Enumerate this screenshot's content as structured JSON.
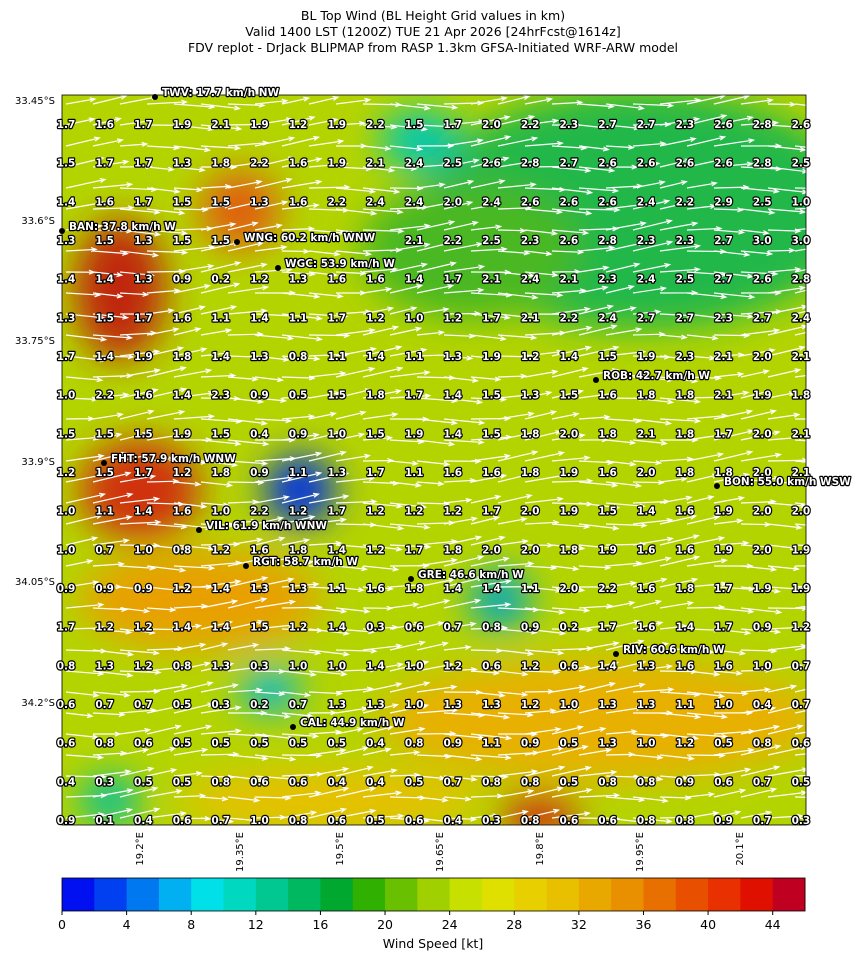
{
  "header": {
    "lines": [
      "BL Top Wind (BL Height Grid values in km)",
      "Valid 1400 LST (1200Z) TUE 21 Apr 2026 [24hrFcst@1614z]",
      "FDV replot - DrJack BLIPMAP from RASP 1.3km GFSA-Initiated WRF-ARW model"
    ]
  },
  "map": {
    "lat_labels": [
      "33.45°S",
      "33.6°S",
      "33.75°S",
      "33.9°S",
      "34.05°S",
      "34.2°S"
    ],
    "lon_labels": [
      "19.2°E",
      "19.35°E",
      "19.5°E",
      "19.65°E",
      "19.8°E",
      "19.95°E",
      "20.1°E"
    ],
    "grid": [
      [
        "1.7",
        "1.6",
        "1.7",
        "1.9",
        "2.1",
        "1.9",
        "1.2",
        "1.9",
        "2.2",
        "1.5",
        "1.7",
        "2.0",
        "2.2",
        "2.3",
        "2.7",
        "2.7",
        "2.3",
        "2.6",
        "2.8",
        "2.6"
      ],
      [
        "1.5",
        "1.7",
        "1.7",
        "1.3",
        "1.8",
        "2.2",
        "1.6",
        "1.9",
        "2.1",
        "2.4",
        "2.5",
        "2.6",
        "2.8",
        "2.7",
        "2.6",
        "2.6",
        "2.6",
        "2.6",
        "2.8",
        "2.5"
      ],
      [
        "1.4",
        "1.6",
        "1.7",
        "1.5",
        "1.5",
        "1.3",
        "1.6",
        "2.2",
        "2.4",
        "2.4",
        "2.0",
        "2.4",
        "2.6",
        "2.6",
        "2.6",
        "2.4",
        "2.2",
        "2.9",
        "2.5",
        "1.0"
      ],
      [
        "1.3",
        "1.5",
        "1.3",
        "1.5",
        "1.5",
        null,
        null,
        null,
        null,
        "2.1",
        "2.2",
        "2.5",
        "2.3",
        "2.6",
        "2.8",
        "2.3",
        "2.3",
        "2.7",
        "3.0",
        "3.0"
      ],
      [
        "1.4",
        "1.4",
        "1.3",
        "0.9",
        "0.2",
        "1.2",
        "1.3",
        "1.6",
        "1.6",
        "1.4",
        "1.7",
        "2.1",
        "2.4",
        "2.1",
        "2.3",
        "2.4",
        "2.5",
        "2.7",
        "2.6",
        "2.8"
      ],
      [
        "1.3",
        "1.5",
        "1.7",
        "1.6",
        "1.1",
        "1.4",
        "1.1",
        "1.7",
        "1.2",
        "1.0",
        "1.2",
        "1.7",
        "2.1",
        "2.2",
        "2.4",
        "2.7",
        "2.7",
        "2.3",
        "2.7",
        "2.4"
      ],
      [
        "1.7",
        "1.4",
        "1.9",
        "1.8",
        "1.4",
        "1.3",
        "0.8",
        "1.1",
        "1.4",
        "1.1",
        "1.3",
        "1.9",
        "1.2",
        "1.4",
        "1.5",
        "1.9",
        "2.3",
        "2.1",
        "2.0",
        "2.1"
      ],
      [
        "1.0",
        "2.2",
        "1.6",
        "1.4",
        "2.3",
        "0.9",
        "0.5",
        "1.5",
        "1.8",
        "1.7",
        "1.4",
        "1.5",
        "1.3",
        "1.5",
        "1.6",
        "1.8",
        "1.8",
        "2.1",
        "1.9",
        "1.8"
      ],
      [
        "1.5",
        "1.5",
        "1.5",
        "1.9",
        "1.5",
        "0.4",
        "0.9",
        "1.0",
        "1.5",
        "1.9",
        "1.4",
        "1.5",
        "1.8",
        "2.0",
        "1.8",
        "2.1",
        "1.8",
        "1.7",
        "2.0",
        "2.1"
      ],
      [
        "1.2",
        "1.5",
        "1.7",
        "1.2",
        "1.8",
        "0.9",
        "1.1",
        "1.3",
        "1.7",
        "1.1",
        "1.6",
        "1.6",
        "1.8",
        "1.9",
        "1.6",
        "2.0",
        "1.8",
        "1.8",
        "2.0",
        "2.1"
      ],
      [
        "1.0",
        "1.1",
        "1.4",
        "1.6",
        "1.0",
        "2.2",
        "1.2",
        "1.7",
        "1.2",
        "1.2",
        "1.2",
        "1.7",
        "2.0",
        "1.9",
        "1.5",
        "1.4",
        "1.6",
        "1.9",
        "2.0",
        "2.0"
      ],
      [
        "1.0",
        "0.7",
        "1.0",
        "0.8",
        "1.2",
        "1.6",
        "1.8",
        "1.4",
        "1.2",
        "1.7",
        "1.8",
        "2.0",
        "2.0",
        "1.8",
        "1.9",
        "1.6",
        "1.6",
        "1.9",
        "2.0",
        "1.9"
      ],
      [
        "0.9",
        "0.9",
        "0.9",
        "1.2",
        "1.4",
        "1.3",
        "1.3",
        "1.1",
        "1.6",
        "1.8",
        "1.4",
        "1.4",
        "1.1",
        "2.0",
        "2.2",
        "1.6",
        "1.8",
        "1.7",
        "1.9",
        "1.9"
      ],
      [
        "1.7",
        "1.2",
        "1.2",
        "1.4",
        "1.4",
        "1.5",
        "1.2",
        "1.4",
        "0.3",
        "0.6",
        "0.7",
        "0.8",
        "0.9",
        "0.2",
        "1.7",
        "1.6",
        "1.4",
        "1.7",
        "0.9",
        "1.2"
      ],
      [
        "0.8",
        "1.3",
        "1.2",
        "0.8",
        "1.3",
        "0.3",
        "1.0",
        "1.0",
        "1.4",
        "1.0",
        "1.2",
        "0.6",
        "1.2",
        "0.6",
        "1.4",
        "1.3",
        "1.6",
        "1.6",
        "1.0",
        "0.7"
      ],
      [
        "0.6",
        "0.7",
        "0.7",
        "0.5",
        "0.3",
        "0.2",
        "0.7",
        "1.3",
        "1.3",
        "1.0",
        "1.3",
        "1.3",
        "1.2",
        "1.0",
        "1.3",
        "1.3",
        "1.1",
        "1.0",
        "0.4",
        "0.7"
      ],
      [
        "0.6",
        "0.8",
        "0.6",
        "0.5",
        "0.5",
        "0.5",
        "0.5",
        "0.5",
        "0.4",
        "0.8",
        "0.9",
        "1.1",
        "0.9",
        "0.5",
        "1.3",
        "1.0",
        "1.2",
        "0.5",
        "0.8",
        "0.6"
      ],
      [
        "0.4",
        "0.3",
        "0.5",
        "0.5",
        "0.8",
        "0.6",
        "0.6",
        "0.4",
        "0.4",
        "0.5",
        "0.7",
        "0.8",
        "0.8",
        "0.5",
        "0.8",
        "0.8",
        "0.9",
        "0.6",
        "0.7",
        "0.5"
      ],
      [
        "0.9",
        "0.1",
        "0.4",
        "0.6",
        "0.7",
        "1.0",
        "0.8",
        "0.6",
        "0.5",
        "0.6",
        "0.4",
        "0.3",
        "0.8",
        "0.6",
        "0.6",
        "0.8",
        "0.8",
        "0.9",
        "0.7",
        "0.3"
      ]
    ],
    "stations": [
      "TWV: 17.7 km/h NW",
      "BAN: 37.8 km/h W",
      "WNG: 60.2 km/h WNW",
      "WGC: 53.9 km/h W",
      "ROB: 42.7 km/h W",
      "FHT: 57.9 km/h WNW",
      "BON: 55.0 km/h WSW",
      "VIL: 61.9 km/h WNW",
      "RGT: 58.7 km/h W",
      "GRE: 46.6 km/h W",
      "RIV: 60.6 km/h W",
      "CAL: 44.9 km/h W"
    ]
  },
  "colorbar": {
    "label": "Wind Speed [kt]",
    "lim": [
      0,
      46
    ],
    "ticks": [
      0,
      4,
      8,
      12,
      16,
      20,
      24,
      28,
      32,
      36,
      40,
      44
    ],
    "colors": [
      "#0010f0",
      "#0040f0",
      "#0078f0",
      "#00b0f0",
      "#00e0e8",
      "#00d8c0",
      "#00c890",
      "#00b860",
      "#00a830",
      "#30b000",
      "#68c000",
      "#a0d000",
      "#c8e000",
      "#e0e000",
      "#e8d000",
      "#e8c000",
      "#e8a800",
      "#e89000",
      "#e87000",
      "#e85000",
      "#e83000",
      "#e01000",
      "#c00020"
    ]
  }
}
